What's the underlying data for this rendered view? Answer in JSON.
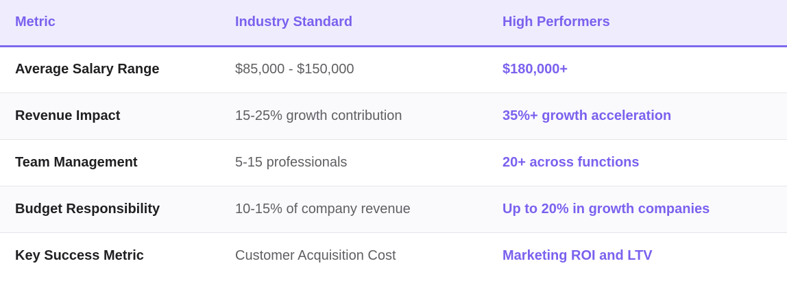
{
  "table": {
    "headers": [
      "Metric",
      "Industry Standard",
      "High Performers"
    ],
    "rows": [
      {
        "metric": "Average Salary Range",
        "industry": "$85,000 - $150,000",
        "high": "$180,000+"
      },
      {
        "metric": "Revenue Impact",
        "industry": "15-25% growth contribution",
        "high": "35%+ growth acceleration"
      },
      {
        "metric": "Team Management",
        "industry": "5-15 professionals",
        "high": "20+ across functions"
      },
      {
        "metric": "Budget Responsibility",
        "industry": "10-15% of company revenue",
        "high": "Up to 20% in growth companies"
      },
      {
        "metric": "Key Success Metric",
        "industry": "Customer Acquisition Cost",
        "high": "Marketing ROI and LTV"
      }
    ]
  },
  "colors": {
    "accent": "#7b61ee",
    "header_bg": "#efedfd",
    "border": "#7b68ee"
  }
}
